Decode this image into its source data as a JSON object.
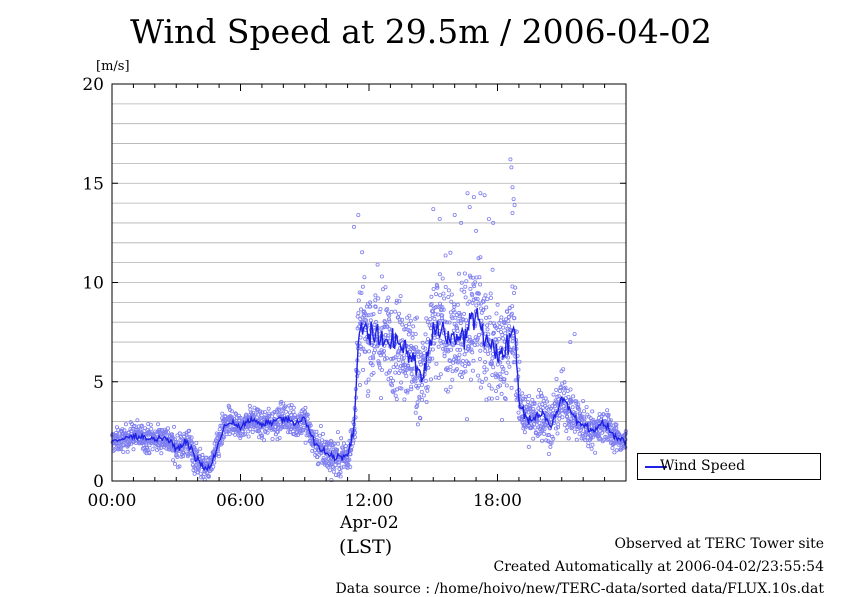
{
  "chart_data": {
    "type": "scatter",
    "title": "Wind Speed at 29.5m / 2006-04-02",
    "ylabel": "[m/s]",
    "ylim": [
      0,
      20
    ],
    "yticks": [
      "0",
      "5",
      "10",
      "15",
      "20"
    ],
    "xlim": [
      "00:00",
      "24:00"
    ],
    "xticks": [
      "00:00",
      "06:00",
      "12:00",
      "18:00"
    ],
    "date_label": "Apr-02",
    "timezone_label": "(LST)",
    "grid": true,
    "legend_position": "right",
    "series": [
      {
        "name": "Wind Speed",
        "color": "#1f22e6",
        "point_color": "#7f7ff0",
        "line_hours": [
          0.0,
          0.5,
          1.0,
          1.5,
          2.0,
          2.5,
          3.0,
          3.5,
          3.9,
          4.3,
          4.6,
          5.0,
          5.3,
          5.6,
          6.0,
          6.5,
          7.0,
          7.5,
          8.0,
          8.5,
          9.0,
          9.5,
          10.0,
          10.5,
          11.0,
          11.3,
          11.5,
          11.7,
          12.0,
          12.5,
          13.0,
          13.5,
          14.0,
          14.5,
          15.0,
          15.5,
          16.0,
          16.5,
          17.0,
          17.5,
          18.0,
          18.5,
          18.8,
          19.0,
          19.3,
          19.6,
          20.0,
          20.5,
          21.0,
          21.5,
          22.0,
          22.5,
          23.0,
          23.5,
          24.0
        ],
        "line_values": [
          2.0,
          2.1,
          2.3,
          2.2,
          2.1,
          2.2,
          1.6,
          2.0,
          1.2,
          0.6,
          0.7,
          2.0,
          2.8,
          3.0,
          2.7,
          3.1,
          2.8,
          3.0,
          3.2,
          2.9,
          3.1,
          1.8,
          1.4,
          1.2,
          1.3,
          2.5,
          7.0,
          8.0,
          7.5,
          7.0,
          7.2,
          6.8,
          6.2,
          5.2,
          7.5,
          7.8,
          7.0,
          7.4,
          8.5,
          7.0,
          6.4,
          6.8,
          7.8,
          4.0,
          3.2,
          3.0,
          3.5,
          2.8,
          4.2,
          3.4,
          2.8,
          2.6,
          2.9,
          2.2,
          2.0
        ],
        "scatter_spread": [
          0.6,
          0.6,
          0.7,
          0.7,
          0.7,
          0.7,
          0.8,
          0.8,
          0.9,
          0.7,
          0.6,
          0.8,
          0.8,
          0.7,
          0.7,
          0.7,
          0.7,
          0.8,
          0.8,
          0.8,
          0.9,
          0.9,
          1.0,
          1.0,
          1.0,
          1.2,
          2.4,
          2.6,
          2.7,
          2.6,
          2.6,
          2.6,
          2.6,
          2.7,
          2.8,
          2.9,
          2.9,
          2.9,
          3.0,
          3.0,
          2.8,
          2.7,
          2.6,
          1.6,
          1.4,
          1.3,
          1.4,
          1.3,
          1.5,
          1.3,
          1.0,
          0.9,
          0.9,
          0.7,
          0.7
        ],
        "outliers": [
          [
            11.3,
            12.8
          ],
          [
            11.5,
            13.4
          ],
          [
            12.4,
            10.9
          ],
          [
            12.6,
            10.3
          ],
          [
            15.0,
            13.7
          ],
          [
            15.3,
            13.2
          ],
          [
            16.0,
            13.4
          ],
          [
            16.3,
            13.0
          ],
          [
            16.6,
            14.5
          ],
          [
            16.7,
            13.8
          ],
          [
            16.9,
            14.3
          ],
          [
            17.0,
            12.6
          ],
          [
            17.2,
            14.5
          ],
          [
            17.4,
            14.4
          ],
          [
            17.6,
            13.2
          ],
          [
            17.8,
            13.0
          ],
          [
            18.6,
            16.2
          ],
          [
            18.65,
            15.8
          ],
          [
            18.7,
            14.8
          ],
          [
            18.75,
            14.2
          ],
          [
            18.8,
            13.9
          ],
          [
            18.7,
            13.5
          ],
          [
            21.6,
            7.4
          ],
          [
            21.4,
            7.0
          ]
        ]
      }
    ]
  },
  "footer": {
    "observed": "Observed at TERC Tower site",
    "created": "Created Automatically at 2006-04-02/23:55:54",
    "source": "Data source : /home/hoivo/new/TERC-data/sorted  data/FLUX.10s.dat"
  }
}
